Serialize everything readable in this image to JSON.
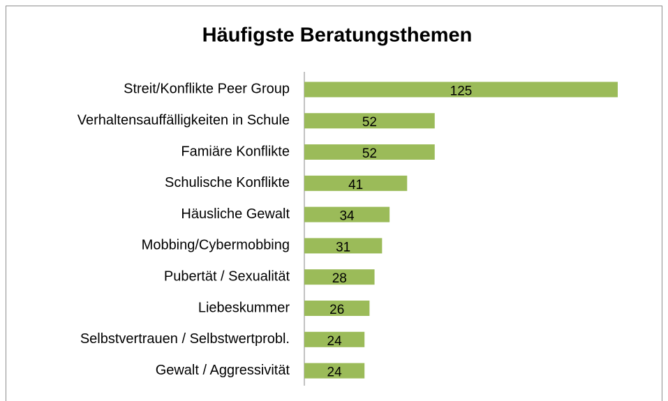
{
  "chart_data": {
    "type": "bar",
    "orientation": "horizontal",
    "title": "Häufigste Beratungsthemen",
    "categories": [
      "Streit/Konflikte Peer Group",
      "Verhaltensauffälligkeiten in Schule",
      "Famiäre Konflikte",
      "Schulische Konflikte",
      "Häusliche Gewalt",
      "Mobbing/Cybermobbing",
      "Pubertät / Sexualität",
      "Liebeskummer",
      "Selbstvertrauen / Selbstwertprobl.",
      "Gewalt / Aggressivität"
    ],
    "values": [
      125,
      52,
      52,
      41,
      34,
      31,
      28,
      26,
      24,
      24
    ],
    "color": "#9bbb59"
  }
}
